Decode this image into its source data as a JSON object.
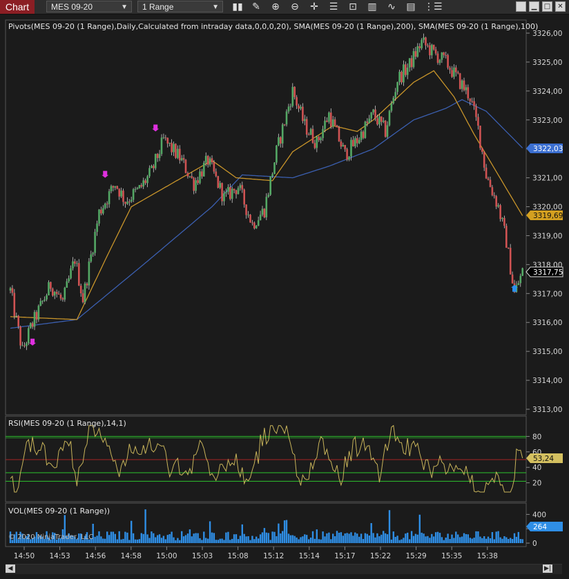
{
  "toolbar": {
    "chart_tab": "Chart",
    "instrument": "MES 09-20",
    "interval": "1 Range",
    "icons": [
      "bar-type-icon",
      "pencil-icon",
      "zoom-in-icon",
      "zoom-out-icon",
      "crosshair-icon",
      "properties-icon",
      "template-icon",
      "strategy-icon",
      "indicators-icon",
      "data-box-icon",
      "more-icon"
    ],
    "window_buttons": [
      "minimize",
      "float",
      "maximize",
      "close"
    ]
  },
  "price_panel": {
    "indicator_label": "Pivots(MES 09-20 (1 Range),Daily,Calculated from intraday data,0,0,0,20), SMA(MES 09-20 (1 Range),200), SMA(MES 09-20 (1 Range),100)",
    "y_ticks": [
      "3326,00",
      "3325,00",
      "3324,00",
      "3323,00",
      "3322,00",
      "3321,00",
      "3320,00",
      "3319,00",
      "3318,00",
      "3317,00",
      "3316,00",
      "3315,00",
      "3314,00",
      "3313,00"
    ],
    "markers": {
      "sma200": {
        "label": "3322,03",
        "color": "#3b6fd1"
      },
      "sma100": {
        "label": "3319,69",
        "color": "#d4a020"
      },
      "last": {
        "label": "3317,75",
        "color": "#000000"
      }
    }
  },
  "rsi_panel": {
    "label": "RSI(MES 09-20 (1 Range),14,1)",
    "y_ticks": [
      "80",
      "60",
      "40",
      "20"
    ],
    "value": "53,24"
  },
  "vol_panel": {
    "label": "VOL(MES 09-20 (1 Range))",
    "y_ticks": [
      "400",
      "200",
      "0"
    ],
    "value": "264",
    "copyright": "© 2020 NinjaTrader, LLC"
  },
  "x_axis": {
    "ticks": [
      "14:50",
      "14:53",
      "14:56",
      "14:58",
      "15:00",
      "15:03",
      "15:08",
      "15:12",
      "15:14",
      "15:17",
      "15:22",
      "15:29",
      "15:35",
      "15:38"
    ]
  },
  "chart_data": {
    "type": "candlestick",
    "price_range": [
      3312.8,
      3326.4
    ],
    "anchors": [
      [
        0,
        3317.1
      ],
      [
        6,
        3315.0
      ],
      [
        10,
        3315.8
      ],
      [
        20,
        3317.3
      ],
      [
        26,
        3316.7
      ],
      [
        32,
        3318.2
      ],
      [
        36,
        3316.8
      ],
      [
        44,
        3319.8
      ],
      [
        52,
        3320.8
      ],
      [
        57,
        3320.2
      ],
      [
        64,
        3320.6
      ],
      [
        70,
        3321.2
      ],
      [
        76,
        3322.3
      ],
      [
        84,
        3321.7
      ],
      [
        91,
        3320.8
      ],
      [
        98,
        3321.6
      ],
      [
        106,
        3320.3
      ],
      [
        113,
        3320.7
      ],
      [
        120,
        3319.4
      ],
      [
        126,
        3319.9
      ],
      [
        132,
        3321.9
      ],
      [
        140,
        3324.0
      ],
      [
        146,
        3322.8
      ],
      [
        152,
        3322.2
      ],
      [
        158,
        3323.2
      ],
      [
        166,
        3321.8
      ],
      [
        172,
        3322.3
      ],
      [
        180,
        3323.2
      ],
      [
        186,
        3322.6
      ],
      [
        192,
        3324.4
      ],
      [
        198,
        3324.9
      ],
      [
        204,
        3325.7
      ],
      [
        210,
        3325.3
      ],
      [
        216,
        3325.0
      ],
      [
        222,
        3324.4
      ],
      [
        228,
        3323.8
      ],
      [
        232,
        3322.7
      ],
      [
        236,
        3321.1
      ],
      [
        242,
        3320.0
      ],
      [
        246,
        3318.8
      ],
      [
        250,
        3317.0
      ],
      [
        254,
        3317.75
      ]
    ],
    "sma200_anchors": [
      [
        0,
        3315.8
      ],
      [
        33,
        3316.1
      ],
      [
        66,
        3318.0
      ],
      [
        100,
        3320.0
      ],
      [
        115,
        3321.1
      ],
      [
        140,
        3321.0
      ],
      [
        158,
        3321.4
      ],
      [
        180,
        3322.0
      ],
      [
        200,
        3323.0
      ],
      [
        216,
        3323.4
      ],
      [
        224,
        3323.7
      ],
      [
        236,
        3323.3
      ],
      [
        254,
        3322.03
      ]
    ],
    "sma100_anchors": [
      [
        0,
        3316.2
      ],
      [
        33,
        3316.1
      ],
      [
        48,
        3318.3
      ],
      [
        60,
        3320.0
      ],
      [
        100,
        3321.6
      ],
      [
        112,
        3321.0
      ],
      [
        130,
        3320.9
      ],
      [
        140,
        3321.9
      ],
      [
        160,
        3322.8
      ],
      [
        172,
        3322.6
      ],
      [
        180,
        3323.0
      ],
      [
        200,
        3324.3
      ],
      [
        210,
        3324.7
      ],
      [
        220,
        3323.8
      ],
      [
        230,
        3322.5
      ],
      [
        254,
        3319.69
      ]
    ],
    "rsi": {
      "upper": 80,
      "mid": 50,
      "lower": 20,
      "bands": [
        33,
        22
      ]
    },
    "colors": {
      "bull": "#54a865",
      "bear": "#d05353",
      "wick": "#cfcfcf",
      "grid": "#3a3a3a",
      "rsi_line": "#c8b45a",
      "rsi_green": "#2ec42e",
      "rsi_red": "#a52424",
      "vol": "#2f8ee5",
      "sma200": "#3b5fb0",
      "sma100": "#c9952a",
      "marker": "#e030e0",
      "marker_blue": "#2a8ff0"
    }
  }
}
